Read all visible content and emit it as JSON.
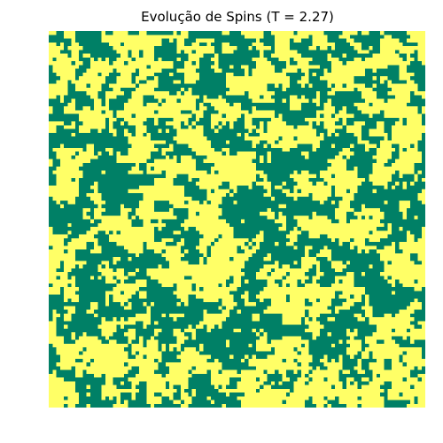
{
  "chart_data": {
    "type": "heatmap",
    "title": "Evolução de Spins (T = 2.27)",
    "xlabel": "",
    "ylabel": "",
    "axes_visible": false,
    "grid": false,
    "colormap": "summer",
    "colors": {
      "spin_down": "#008066",
      "spin_up": "#ffff66"
    },
    "spin_values": [
      -1,
      1
    ],
    "temperature": 2.27,
    "rows": 100,
    "cols": 100
  }
}
